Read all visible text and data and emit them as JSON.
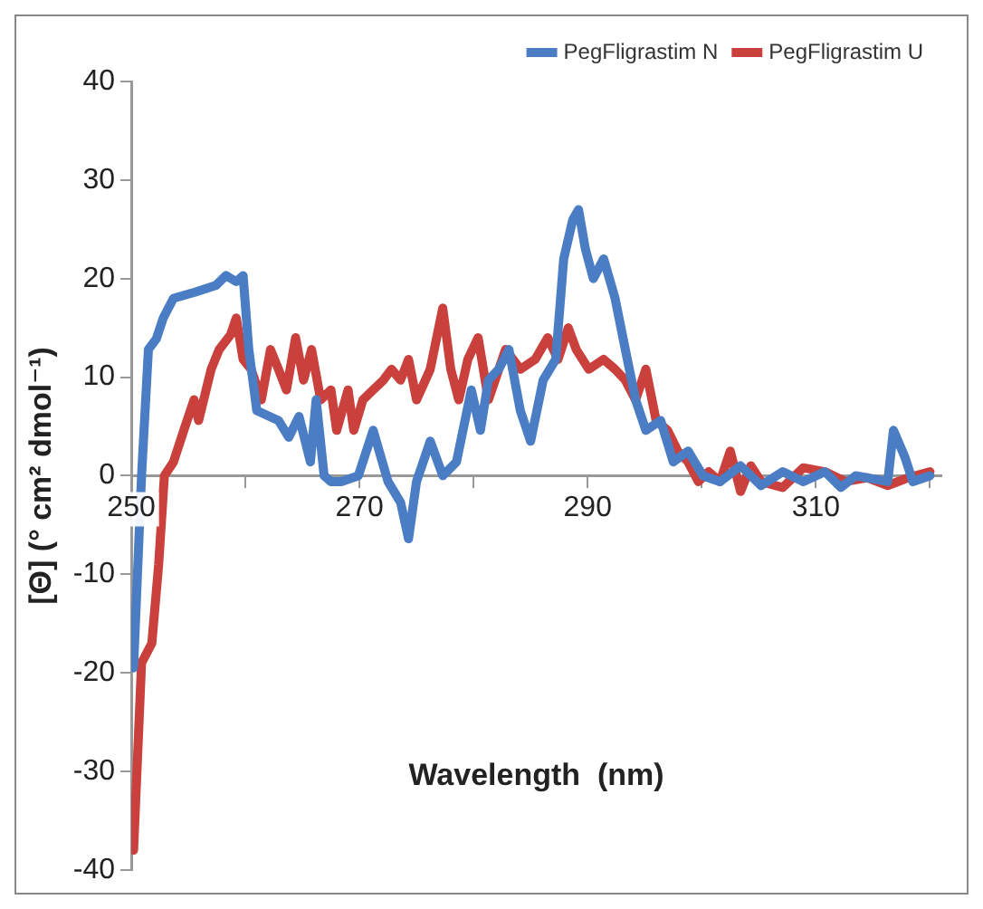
{
  "chart_data": {
    "type": "line",
    "xlabel": "Wavelength  (nm)",
    "ylabel": "[Θ] (° cm² dmol⁻¹)",
    "xlim": [
      250,
      321
    ],
    "xticks": [
      250,
      {
        "value": 260,
        "label": null
      },
      270,
      {
        "value": 280,
        "label": null
      },
      290,
      {
        "value": 300,
        "label": null
      },
      310,
      {
        "value": 320,
        "label": null
      }
    ],
    "ylim": [
      -40,
      40
    ],
    "yticks": [
      -40,
      -30,
      -20,
      -10,
      0,
      10,
      20,
      30,
      40
    ],
    "grid": false,
    "legend": "top right",
    "marker": "none",
    "line_style": "solid",
    "series": [
      {
        "name": "PegFligrastim N",
        "color": "#4a7dc4",
        "x": [
          250.2,
          250.9,
          251.5,
          252.2,
          252.8,
          253.7,
          255.5,
          257.4,
          258.3,
          259.2,
          259.8,
          260.3,
          261,
          262.9,
          263.8,
          264.7,
          265.7,
          266.2,
          266.9,
          267.5,
          268.4,
          269.9,
          271.2,
          272.5,
          273.6,
          274.3,
          275,
          276.2,
          277.3,
          278.5,
          279.8,
          280.6,
          281.3,
          282.2,
          283.1,
          284.1,
          285,
          286.1,
          287.2,
          287.9,
          288.7,
          289.2,
          289.8,
          290.5,
          291.4,
          292.4,
          293.3,
          294.2,
          295.1,
          296.4,
          297.5,
          298.8,
          300.1,
          301.6,
          303.4,
          305.2,
          307.1,
          308.9,
          310.8,
          312.2,
          313.5,
          316.3,
          316.8,
          317.8,
          318.5,
          320
        ],
        "values": [
          -19.5,
          0,
          12.8,
          13.9,
          16,
          18,
          18.6,
          19.3,
          20.3,
          19.7,
          20.3,
          12.8,
          6.6,
          5.6,
          3.9,
          6,
          1.4,
          7.7,
          0,
          -0.6,
          -0.6,
          0,
          4.6,
          -0.6,
          -2.7,
          -6.4,
          -0.6,
          3.5,
          0,
          1.4,
          8.7,
          4.6,
          9.7,
          10.8,
          12.8,
          6.6,
          3.5,
          9.7,
          11.8,
          22,
          26,
          27,
          23,
          20,
          22,
          18,
          12.8,
          7.7,
          4.6,
          5.6,
          1.4,
          2.5,
          0,
          -0.6,
          1,
          -1,
          0.4,
          -0.6,
          0.4,
          -1.2,
          0,
          -0.6,
          4.6,
          1.9,
          -0.6,
          0
        ]
      },
      {
        "name": "PegFligrastim U",
        "color": "#c9403d",
        "x": [
          250.2,
          250.9,
          251.8,
          252.4,
          252.9,
          253.7,
          254.6,
          255.5,
          255.9,
          257,
          257.7,
          258.7,
          259.2,
          259.8,
          260.5,
          261.4,
          262.2,
          262.9,
          263.6,
          264.4,
          265.1,
          265.8,
          266.6,
          267.5,
          268,
          269,
          269.5,
          270.3,
          271.2,
          272.1,
          272.8,
          273.6,
          274.3,
          275,
          276.2,
          277.3,
          278,
          278.7,
          279.5,
          280.4,
          281.3,
          282.8,
          284.1,
          285.4,
          286.5,
          287.4,
          288.3,
          289,
          290.1,
          291.4,
          292.4,
          293.3,
          294.2,
          295.1,
          296,
          297,
          297.9,
          298.8,
          299.7,
          300.6,
          301.6,
          302.5,
          303.4,
          304.3,
          305.2,
          307.1,
          308.9,
          310.8,
          312.6,
          314.5,
          316.3,
          318.1,
          320
        ],
        "values": [
          -38,
          -19,
          -17,
          -9,
          0,
          1.4,
          4.6,
          7.7,
          5.6,
          10.8,
          12.8,
          14.3,
          16,
          11.8,
          10.8,
          7.7,
          12.8,
          10.8,
          8.7,
          14,
          9.7,
          12.8,
          7.7,
          8.7,
          4.6,
          8.7,
          4.6,
          7.7,
          8.7,
          9.7,
          10.8,
          9.7,
          11.8,
          7.7,
          10.8,
          17,
          10.8,
          7.7,
          11.8,
          14,
          7.7,
          12.8,
          10.8,
          11.8,
          14,
          11.8,
          15,
          12.8,
          10.8,
          11.8,
          10.8,
          9.7,
          7.7,
          10.8,
          5.6,
          4.6,
          2.5,
          1.4,
          -0.6,
          0.4,
          -0.6,
          2.5,
          -1.6,
          1,
          -0.6,
          -1.2,
          0.8,
          0.4,
          -0.6,
          -0.2,
          -1,
          -0.2,
          0.4
        ]
      }
    ]
  }
}
